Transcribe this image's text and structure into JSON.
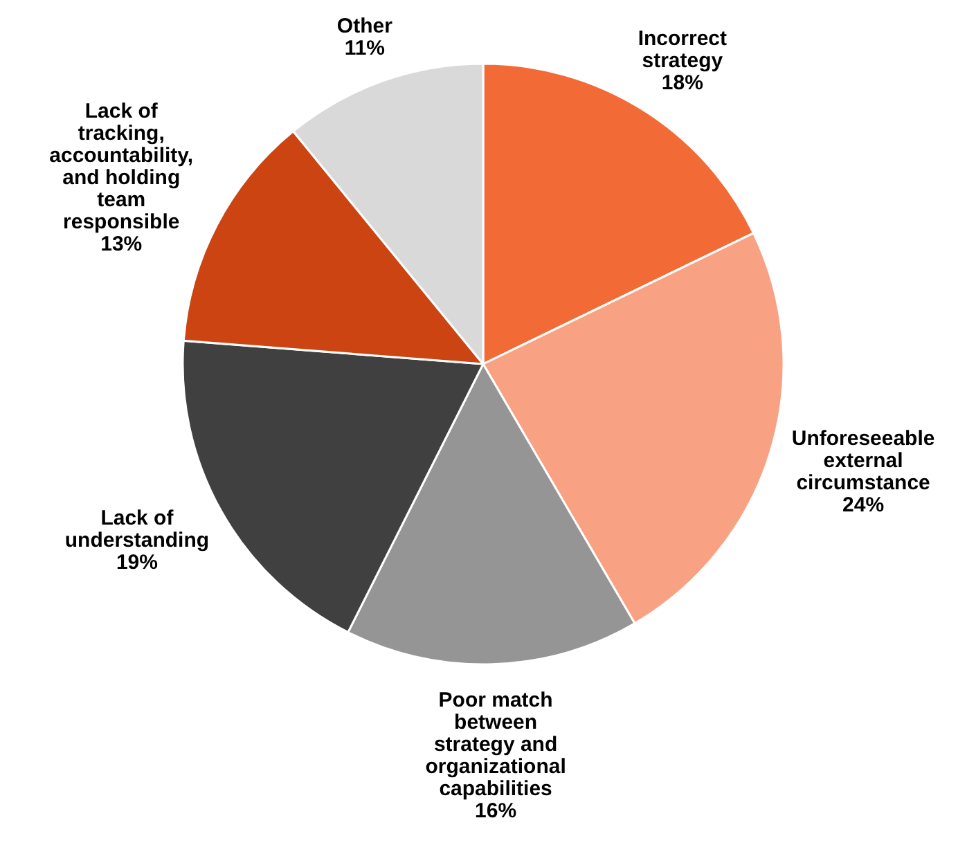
{
  "chart_data": {
    "type": "pie",
    "categories": [
      "Incorrect strategy",
      "Unforeseeable external circumstance",
      "Poor match between strategy and organizational capabilities",
      "Lack of understanding",
      "Lack of tracking, accountability, and holding team responsible",
      "Other"
    ],
    "values": [
      18,
      24,
      16,
      19,
      13,
      11
    ],
    "value_labels": [
      "18%",
      "24%",
      "16%",
      "19%",
      "13%",
      "11%"
    ],
    "colors": [
      "#f26b36",
      "#f8a283",
      "#959595",
      "#404040",
      "#cc4411",
      "#d9d9d9"
    ],
    "legend": false
  }
}
